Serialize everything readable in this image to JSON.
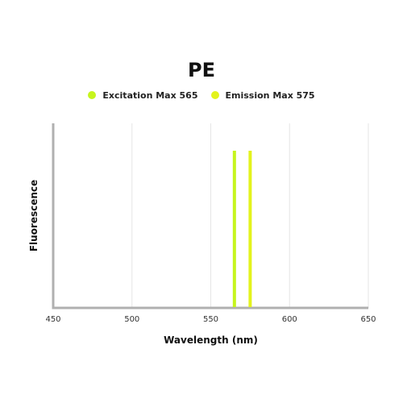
{
  "chart_data": {
    "type": "line",
    "title": "PE",
    "xlabel": "Wavelength (nm)",
    "ylabel": "Fluorescence",
    "xlim": [
      450,
      650
    ],
    "x_ticks": [
      "450",
      "500",
      "550",
      "600",
      "650"
    ],
    "grid": "vertical",
    "legend_position": "top-center",
    "series": [
      {
        "name": "Excitation Max 565",
        "x": 565,
        "color": "#c6f51d"
      },
      {
        "name": "Emission Max 575",
        "x": 575,
        "color": "#e3f31c"
      }
    ]
  },
  "colors": {
    "axis": "#b0b0b0",
    "grid": "#e6e6e6"
  }
}
